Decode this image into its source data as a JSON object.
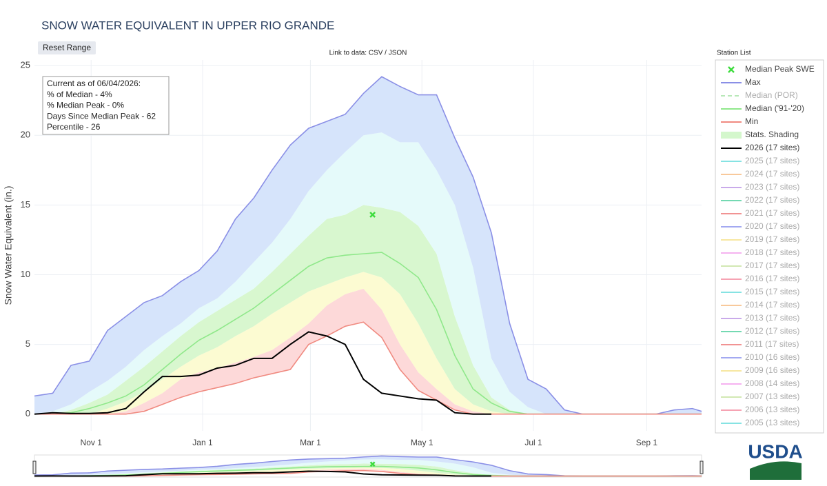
{
  "chart_data": {
    "type": "line",
    "title": "SNOW WATER EQUIVALENT IN UPPER RIO GRANDE",
    "reset_button": "Reset Range",
    "data_link": "Link to data: CSV / JSON",
    "legend_title": "Station List",
    "logo": "USDA",
    "y_label": "Snow Water Equivalent (in.)",
    "annotation": [
      "Current as of 06/04/2026:",
      "% of Median - 4%",
      "% Median Peak - 0%",
      "Days Since Median Peak - 62",
      "Percentile - 26"
    ],
    "grid": true,
    "xlim": [
      0,
      365
    ],
    "xticks": [
      {
        "value": 31,
        "label": "Nov  1"
      },
      {
        "value": 92,
        "label": "Jan  1"
      },
      {
        "value": 151,
        "label": "Mar  1"
      },
      {
        "value": 212,
        "label": "May  1"
      },
      {
        "value": 273,
        "label": "Jul  1"
      },
      {
        "value": 335,
        "label": "Sep  1"
      }
    ],
    "ylim": [
      -1.2,
      25.4
    ],
    "yticks": [
      0,
      5,
      10,
      15,
      20,
      25
    ],
    "x": [
      0,
      10,
      20,
      30,
      40,
      50,
      60,
      70,
      80,
      90,
      100,
      110,
      120,
      130,
      140,
      150,
      160,
      170,
      180,
      190,
      200,
      210,
      220,
      230,
      240,
      250,
      260,
      270,
      280,
      290,
      300,
      310,
      320,
      330,
      340,
      350,
      360,
      365
    ],
    "series": [
      {
        "name": "Max",
        "color": "#8a8fe6",
        "values": [
          1.3,
          1.5,
          3.5,
          3.8,
          6.0,
          7.0,
          8.0,
          8.5,
          9.5,
          10.3,
          11.7,
          14.0,
          15.5,
          17.5,
          19.3,
          20.5,
          21.0,
          21.5,
          23.0,
          24.2,
          23.5,
          22.9,
          22.9,
          19.8,
          17.0,
          13.0,
          6.5,
          2.5,
          1.8,
          0.3,
          0,
          0,
          0,
          0,
          0,
          0.3,
          0.4,
          0.2
        ]
      },
      {
        "name": "Median ('91-'20)",
        "color": "#8fe88a",
        "values": [
          0,
          0,
          0.1,
          0.4,
          0.8,
          1.3,
          2.1,
          3.2,
          4.3,
          5.3,
          6.0,
          6.8,
          7.6,
          8.6,
          9.6,
          10.6,
          11.2,
          11.4,
          11.5,
          11.6,
          10.8,
          9.8,
          7.5,
          4.2,
          1.8,
          0.8,
          0.2,
          0,
          0,
          0,
          0,
          0,
          0,
          0,
          0,
          0,
          0,
          0
        ]
      },
      {
        "name": "Min",
        "color": "#f08a80",
        "values": [
          0,
          0,
          0,
          0,
          0,
          0,
          0.2,
          0.7,
          1.2,
          1.6,
          1.9,
          2.2,
          2.6,
          2.9,
          3.2,
          5.0,
          5.6,
          6.3,
          6.6,
          5.5,
          3.2,
          1.7,
          1.0,
          0.3,
          0,
          0,
          0,
          0,
          0,
          0,
          0,
          0,
          0,
          0,
          0,
          0,
          0,
          0
        ]
      },
      {
        "name": "2026 (17 sites)",
        "color": "#000000",
        "values": [
          0,
          0.1,
          0.05,
          0.05,
          0.1,
          0.4,
          1.6,
          2.7,
          2.7,
          2.8,
          3.3,
          3.5,
          4.0,
          4.0,
          5.0,
          5.9,
          5.6,
          5.0,
          2.5,
          1.5,
          1.3,
          1.1,
          1.0,
          0.1,
          0,
          0,
          null,
          null,
          null,
          null,
          null,
          null,
          null,
          null,
          null,
          null,
          null,
          null
        ]
      }
    ],
    "shading": {
      "name": "Stats. Shading",
      "color": "#d4f7cc",
      "band_colors": [
        "#fdd9d9",
        "#fcfbd2",
        "#d8f7cf",
        "#e5fafa",
        "#d6e4fb"
      ],
      "bounds": [
        [
          0,
          0,
          0,
          0,
          0,
          0.2,
          0.8,
          1.5,
          2.5,
          3.0,
          3.3,
          3.7,
          4.1,
          4.6,
          5.5,
          6.5,
          7.8,
          8.6,
          9.0,
          7.5,
          5.0,
          3.0,
          1.8,
          0.7,
          0.2,
          0,
          0,
          0,
          0,
          0,
          0,
          0,
          0,
          0,
          0,
          0,
          0,
          0
        ],
        [
          0,
          0,
          0,
          0,
          0.4,
          0.9,
          1.6,
          2.5,
          3.4,
          4.2,
          4.8,
          5.6,
          6.3,
          7.2,
          8.0,
          8.8,
          9.3,
          9.8,
          10.2,
          9.8,
          8.6,
          6.5,
          4.0,
          1.8,
          0.7,
          0.2,
          0,
          0,
          0,
          0,
          0,
          0,
          0,
          0,
          0,
          0,
          0,
          0
        ],
        [
          0,
          0,
          0.3,
          0.8,
          1.4,
          2.4,
          3.4,
          4.5,
          5.6,
          6.6,
          7.4,
          8.2,
          9.0,
          10.2,
          11.5,
          12.8,
          14.0,
          14.3,
          15.0,
          14.8,
          14.5,
          13.5,
          11.5,
          7.0,
          3.5,
          1.2,
          0.3,
          0,
          0,
          0,
          0,
          0,
          0,
          0,
          0,
          0,
          0,
          0
        ],
        [
          0,
          0.2,
          0.7,
          1.6,
          2.4,
          3.4,
          4.6,
          5.6,
          6.5,
          7.6,
          8.3,
          9.5,
          10.9,
          12.3,
          14.0,
          16.0,
          17.5,
          18.8,
          20.0,
          20.2,
          19.5,
          19.5,
          17.5,
          15.0,
          10.5,
          4.0,
          1.6,
          0.5,
          0,
          0,
          0,
          0,
          0,
          0,
          0,
          0,
          0,
          0
        ]
      ]
    },
    "peak": {
      "name": "Median Peak SWE",
      "color": "#3ddc3d",
      "x": 185,
      "y": 14.3
    },
    "median_por": {
      "name": "Median (POR)",
      "color": "#b8e8b8"
    },
    "hidden_series": [
      {
        "name": "2025 (17 sites)",
        "color": "#86e3e3"
      },
      {
        "name": "2024 (17 sites)",
        "color": "#f8c99b"
      },
      {
        "name": "2023 (17 sites)",
        "color": "#c9aaea"
      },
      {
        "name": "2022 (17 sites)",
        "color": "#74d9b2"
      },
      {
        "name": "2021 (17 sites)",
        "color": "#f19393"
      },
      {
        "name": "2020 (17 sites)",
        "color": "#a3a9f1"
      },
      {
        "name": "2019 (17 sites)",
        "color": "#f7e7a1"
      },
      {
        "name": "2018 (17 sites)",
        "color": "#f5b2f0"
      },
      {
        "name": "2017 (17 sites)",
        "color": "#d2e8b3"
      },
      {
        "name": "2016 (17 sites)",
        "color": "#f6a3b3"
      },
      {
        "name": "2015 (17 sites)",
        "color": "#86e3e3"
      },
      {
        "name": "2014 (17 sites)",
        "color": "#f8c99b"
      },
      {
        "name": "2013 (17 sites)",
        "color": "#c9aaea"
      },
      {
        "name": "2012 (17 sites)",
        "color": "#74d9b2"
      },
      {
        "name": "2011 (17 sites)",
        "color": "#f19393"
      },
      {
        "name": "2010 (16 sites)",
        "color": "#a3a9f1"
      },
      {
        "name": "2009 (16 sites)",
        "color": "#f7e7a1"
      },
      {
        "name": "2008 (14 sites)",
        "color": "#f5b2f0"
      },
      {
        "name": "2007 (13 sites)",
        "color": "#d2e8b3"
      },
      {
        "name": "2006 (13 sites)",
        "color": "#f6a3b3"
      },
      {
        "name": "2005 (13 sites)",
        "color": "#86e3e3"
      }
    ]
  }
}
